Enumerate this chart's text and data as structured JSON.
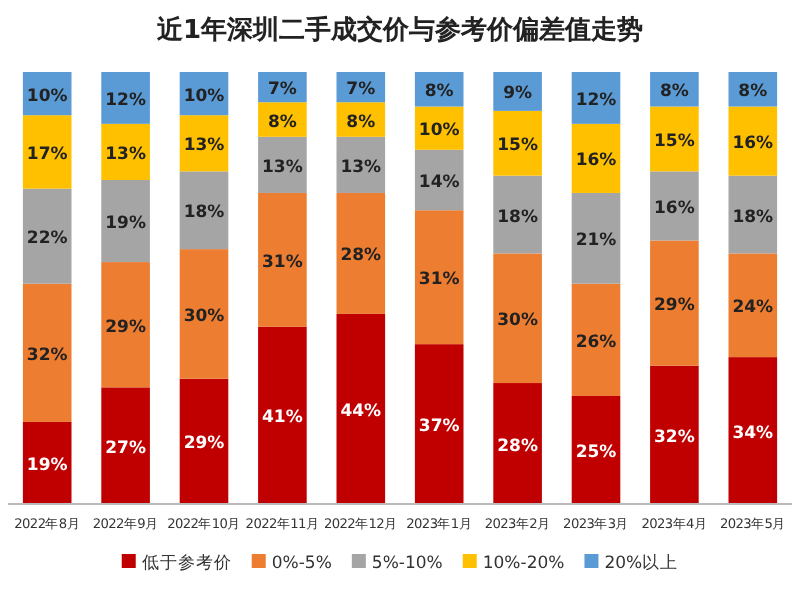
{
  "chart_data": {
    "type": "bar",
    "stacked": true,
    "title": "近1年深圳二手成交价与参考价偏差值走势",
    "categories": [
      "2022年8月",
      "2022年9月",
      "2022年10月",
      "2022年11月",
      "2022年12月",
      "2023年1月",
      "2023年2月",
      "2023年3月",
      "2023年4月",
      "2023年5月"
    ],
    "legend": "bottom",
    "series": [
      {
        "name": "低于参考价",
        "color": "#c00000",
        "values": [
          19,
          27,
          29,
          41,
          44,
          37,
          28,
          25,
          32,
          34
        ],
        "value_labels": [
          "19%",
          "27%",
          "29%",
          "41%",
          "44%",
          "37%",
          "28%",
          "25%",
          "32%",
          "34%"
        ]
      },
      {
        "name": "0%-5%",
        "color": "#ed7d31",
        "values": [
          32,
          29,
          30,
          31,
          28,
          31,
          30,
          26,
          29,
          24
        ],
        "value_labels": [
          "32%",
          "29%",
          "30%",
          "31%",
          "28%",
          "31%",
          "30%",
          "26%",
          "29%",
          "24%"
        ]
      },
      {
        "name": "5%-10%",
        "color": "#a5a5a5",
        "values": [
          22,
          19,
          18,
          13,
          13,
          14,
          18,
          21,
          16,
          18
        ],
        "value_labels": [
          "22%",
          "19%",
          "18%",
          "13%",
          "13%",
          "14%",
          "18%",
          "21%",
          "16%",
          "18%"
        ]
      },
      {
        "name": "10%-20%",
        "color": "#ffc000",
        "values": [
          17,
          13,
          13,
          8,
          8,
          10,
          15,
          16,
          15,
          16
        ],
        "value_labels": [
          "17%",
          "13%",
          "13%",
          "8%",
          "8%",
          "10%",
          "15%",
          "16%",
          "15%",
          "16%"
        ]
      },
      {
        "name": "20%以上",
        "color": "#5b9bd5",
        "values": [
          10,
          12,
          10,
          7,
          7,
          8,
          9,
          12,
          8,
          8
        ],
        "value_labels": [
          "10%",
          "12%",
          "10%",
          "7%",
          "7%",
          "8%",
          "9%",
          "12%",
          "8%",
          "8%"
        ]
      }
    ]
  }
}
